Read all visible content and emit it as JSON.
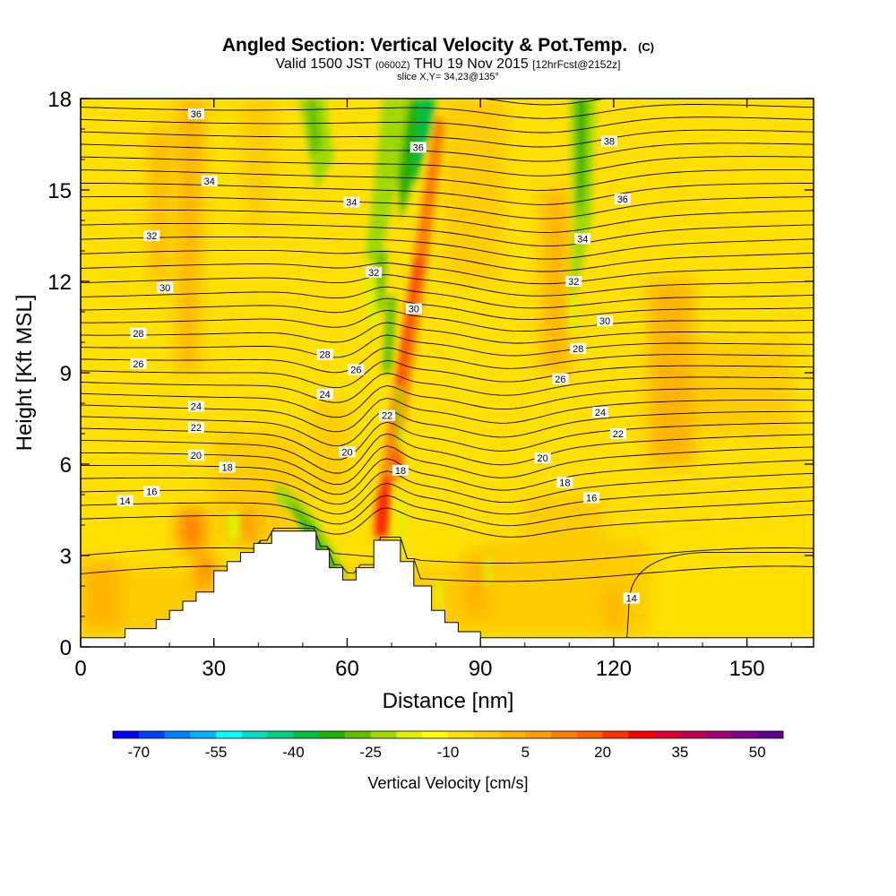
{
  "chart_data": {
    "type": "heatmap",
    "title": "Angled Section: Vertical Velocity & Pot.Temp.",
    "title_unit": "(C)",
    "subtitle_pre": "Valid 1500 JST",
    "subtitle_zulu": "(0600Z)",
    "subtitle_date": "THU 19 Nov 2015",
    "subtitle_fcst": "[12hrFcst@2152z]",
    "slice_label": "slice X,Y= 34,23@135°",
    "xlabel": "Distance [nm]",
    "ylabel": "Height [Kft MSL]",
    "xlim": [
      0,
      165
    ],
    "ylim": [
      0,
      18
    ],
    "x_ticks": [
      "0",
      "30",
      "60",
      "90",
      "120",
      "150"
    ],
    "x_tick_values": [
      0,
      30,
      60,
      90,
      120,
      150
    ],
    "y_ticks": [
      "0",
      "3",
      "6",
      "9",
      "12",
      "15",
      "18"
    ],
    "y_tick_values": [
      0,
      3,
      6,
      9,
      12,
      15,
      18
    ],
    "colorbar": {
      "label": "Vertical Velocity [cm/s]",
      "range": [
        -75,
        55
      ],
      "step": 5,
      "tick_labels": [
        "-70",
        "-55",
        "-40",
        "-25",
        "-10",
        "5",
        "20",
        "35",
        "50"
      ],
      "tick_values": [
        -70,
        -55,
        -40,
        -25,
        -10,
        5,
        20,
        35,
        50
      ],
      "colors": [
        "#0000ff",
        "#0040ff",
        "#0080ff",
        "#00b4ff",
        "#00ffff",
        "#00e0c0",
        "#00d080",
        "#00c040",
        "#20b000",
        "#60c000",
        "#a0d800",
        "#e0f000",
        "#ffff00",
        "#ffe000",
        "#ffcc00",
        "#ffb400",
        "#ff9c00",
        "#ff8000",
        "#ff6000",
        "#ff3000",
        "#ff0000",
        "#e00030",
        "#c00050",
        "#a00070",
        "#800090",
        "#600090"
      ]
    },
    "terrain_profile": {
      "x": [
        0,
        10,
        10,
        17,
        17,
        20,
        20,
        23,
        23,
        26,
        26,
        30,
        30,
        33,
        33,
        36,
        36,
        39,
        39,
        43,
        43,
        53,
        53,
        56,
        56,
        59,
        59,
        62,
        62,
        66,
        66,
        72,
        72,
        75,
        75,
        79,
        79,
        82,
        82,
        85,
        85,
        90,
        90,
        165
      ],
      "y": [
        0.3,
        0.3,
        0.6,
        0.6,
        0.9,
        0.9,
        1.2,
        1.2,
        1.5,
        1.5,
        1.8,
        1.8,
        2.5,
        2.5,
        2.8,
        2.8,
        3.1,
        3.1,
        3.4,
        3.4,
        3.8,
        3.8,
        3.2,
        3.2,
        2.6,
        2.6,
        2.2,
        2.2,
        2.6,
        2.6,
        3.5,
        3.5,
        2.8,
        2.8,
        2.0,
        2.0,
        1.2,
        1.2,
        0.8,
        0.8,
        0.5,
        0.5,
        0.3,
        0.3
      ]
    },
    "theta_contour_labels": [
      {
        "v": "36",
        "x": 26,
        "y": 17.5
      },
      {
        "v": "36",
        "x": 76,
        "y": 16.4
      },
      {
        "v": "38",
        "x": 119,
        "y": 16.6
      },
      {
        "v": "36",
        "x": 122,
        "y": 14.7
      },
      {
        "v": "34",
        "x": 29,
        "y": 15.3
      },
      {
        "v": "34",
        "x": 61,
        "y": 14.6
      },
      {
        "v": "34",
        "x": 113,
        "y": 13.4
      },
      {
        "v": "32",
        "x": 16,
        "y": 13.5
      },
      {
        "v": "32",
        "x": 66,
        "y": 12.3
      },
      {
        "v": "32",
        "x": 111,
        "y": 12.0
      },
      {
        "v": "30",
        "x": 19,
        "y": 11.8
      },
      {
        "v": "30",
        "x": 75,
        "y": 11.1
      },
      {
        "v": "30",
        "x": 118,
        "y": 10.7
      },
      {
        "v": "28",
        "x": 13,
        "y": 10.3
      },
      {
        "v": "28",
        "x": 55,
        "y": 9.6
      },
      {
        "v": "28",
        "x": 112,
        "y": 9.8
      },
      {
        "v": "26",
        "x": 13,
        "y": 9.3
      },
      {
        "v": "26",
        "x": 62,
        "y": 9.1
      },
      {
        "v": "26",
        "x": 108,
        "y": 8.8
      },
      {
        "v": "24",
        "x": 26,
        "y": 7.9
      },
      {
        "v": "24",
        "x": 55,
        "y": 8.3
      },
      {
        "v": "24",
        "x": 117,
        "y": 7.7
      },
      {
        "v": "22",
        "x": 26,
        "y": 7.2
      },
      {
        "v": "22",
        "x": 69,
        "y": 7.6
      },
      {
        "v": "22",
        "x": 121,
        "y": 7.0
      },
      {
        "v": "20",
        "x": 26,
        "y": 6.3
      },
      {
        "v": "20",
        "x": 60,
        "y": 6.4
      },
      {
        "v": "20",
        "x": 104,
        "y": 6.2
      },
      {
        "v": "18",
        "x": 33,
        "y": 5.9
      },
      {
        "v": "18",
        "x": 72,
        "y": 5.8
      },
      {
        "v": "18",
        "x": 109,
        "y": 5.4
      },
      {
        "v": "16",
        "x": 16,
        "y": 5.1
      },
      {
        "v": "16",
        "x": 115,
        "y": 4.9
      },
      {
        "v": "14",
        "x": 10,
        "y": 4.8
      },
      {
        "v": "14",
        "x": 124,
        "y": 1.6
      }
    ]
  }
}
